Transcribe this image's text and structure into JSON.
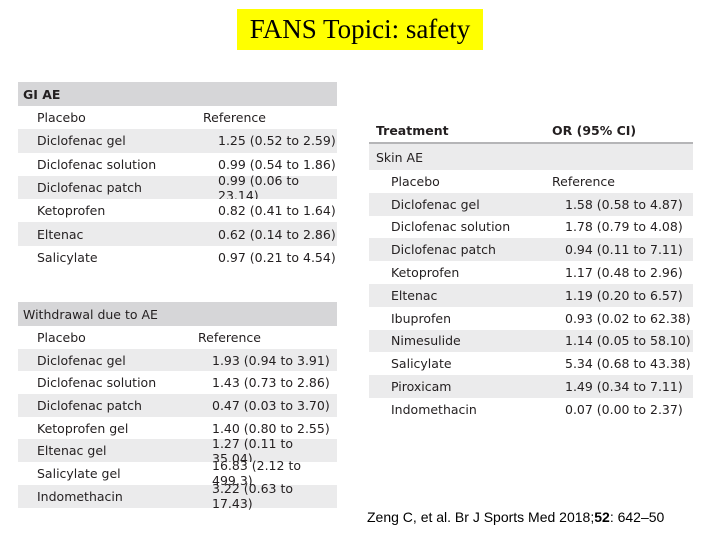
{
  "title": "FANS Topici: safety",
  "gi_table": {
    "section": "GI AE",
    "rows": [
      {
        "treatment": "Placebo",
        "value": "Reference"
      },
      {
        "treatment": "Diclofenac gel",
        "value": "1.25 (0.52 to 2.59)"
      },
      {
        "treatment": "Diclofenac solution",
        "value": "0.99 (0.54 to 1.86)"
      },
      {
        "treatment": "Diclofenac patch",
        "value": "0.99 (0.06 to 23.14)"
      },
      {
        "treatment": "Ketoprofen",
        "value": "0.82 (0.41 to 1.64)"
      },
      {
        "treatment": "Eltenac",
        "value": "0.62 (0.14 to 2.86)"
      },
      {
        "treatment": "Salicylate",
        "value": "0.97 (0.21 to 4.54)"
      }
    ]
  },
  "withdrawal_table": {
    "section": "Withdrawal due to AE",
    "rows": [
      {
        "treatment": "Placebo",
        "value": "Reference"
      },
      {
        "treatment": "Diclofenac gel",
        "value": "1.93 (0.94 to 3.91)"
      },
      {
        "treatment": "Diclofenac solution",
        "value": "1.43 (0.73 to 2.86)"
      },
      {
        "treatment": "Diclofenac patch",
        "value": "0.47 (0.03 to 3.70)"
      },
      {
        "treatment": "Ketoprofen gel",
        "value": "1.40 (0.80 to 2.55)"
      },
      {
        "treatment": "Eltenac gel",
        "value": "1.27 (0.11 to 35.04)"
      },
      {
        "treatment": "Salicylate gel",
        "value": "16.83 (2.12 to 499.3)"
      },
      {
        "treatment": "Indomethacin",
        "value": "3.22 (0.63 to 17.43)"
      }
    ]
  },
  "skin_table": {
    "header": {
      "treatment": "Treatment",
      "value": "OR (95% CI)"
    },
    "section": "Skin AE",
    "rows": [
      {
        "treatment": "Placebo",
        "value": "Reference"
      },
      {
        "treatment": "Diclofenac gel",
        "value": "1.58 (0.58 to 4.87)"
      },
      {
        "treatment": "Diclofenac solution",
        "value": "1.78 (0.79 to 4.08)"
      },
      {
        "treatment": "Diclofenac patch",
        "value": "0.94 (0.11 to 7.11)"
      },
      {
        "treatment": "Ketoprofen",
        "value": "1.17 (0.48 to 2.96)"
      },
      {
        "treatment": "Eltenac",
        "value": "1.19 (0.20 to 6.57)"
      },
      {
        "treatment": "Ibuprofen",
        "value": "0.93 (0.02 to 62.38)"
      },
      {
        "treatment": "Nimesulide",
        "value": "1.14 (0.05 to 58.10)"
      },
      {
        "treatment": "Salicylate",
        "value": "5.34 (0.68 to 43.38)"
      },
      {
        "treatment": "Piroxicam",
        "value": "1.49 (0.34 to 7.11)"
      },
      {
        "treatment": "Indomethacin",
        "value": "0.07 (0.00 to 2.37)"
      }
    ]
  },
  "citation": {
    "prefix": "Zeng C, et al. Br J Sports Med 2018;",
    "volume": "52",
    "pages": ": 642–50"
  }
}
